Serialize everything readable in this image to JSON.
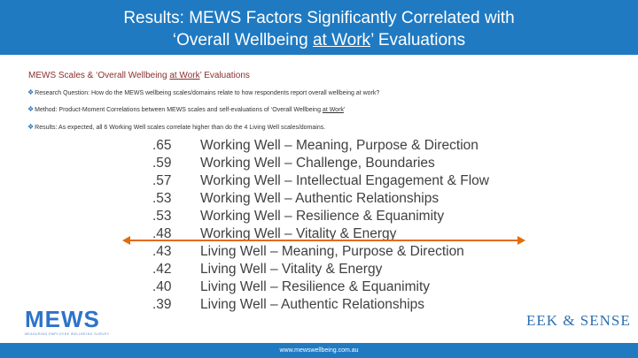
{
  "header": {
    "title_line1": "Results:  MEWS Factors Significantly Correlated with",
    "title_line2_prefix": "‘Overall Wellbeing ",
    "title_line2_underlined": "at Work",
    "title_line2_suffix": "’ Evaluations"
  },
  "subtitle": {
    "prefix": "MEWS Scales & ‘Overall Wellbeing ",
    "underlined": "at Work",
    "suffix": "’ Evaluations"
  },
  "bullets": [
    {
      "label": "Research Question:",
      "text": " How do the MEWS wellbeing scales/domains relate to how respondents report overall wellbeing at work?"
    },
    {
      "label": "Method:",
      "text": " Product-Moment Correlations between MEWS scales and self-evaluations of ‘Overall Wellbeing ",
      "underlined": "at Work",
      "suffix": "’"
    },
    {
      "label": "Results:",
      "text": " As expected, all 6 Working Well scales correlate higher than do the 4 Living Well scales/domains."
    }
  ],
  "correlations": [
    {
      "value": ".65",
      "label": "Working Well – Meaning, Purpose & Direction"
    },
    {
      "value": ".59",
      "label": "Working Well – Challenge, Boundaries"
    },
    {
      "value": ".57",
      "label": "Working Well – Intellectual Engagement & Flow"
    },
    {
      "value": ".53",
      "label": "Working Well – Authentic Relationships"
    },
    {
      "value": ".53",
      "label": "Working Well – Resilience & Equanimity"
    },
    {
      "value": ".48",
      "label": "Working Well – Vitality & Energy"
    },
    {
      "value": ".43",
      "label": "Living Well – Meaning, Purpose & Direction"
    },
    {
      "value": ".42",
      "label": "Living Well – Vitality & Energy"
    },
    {
      "value": ".40",
      "label": "Living Well – Resilience & Equanimity"
    },
    {
      "value": ".39",
      "label": "Living Well – Authentic Relationships"
    }
  ],
  "colors": {
    "header_bg": "#1f7ac2",
    "accent_divider": "#e36c0a",
    "subtitle_text": "#8a2e2e",
    "body_text": "#404040"
  },
  "logos": {
    "mews_brand": "MEWS",
    "mews_tagline": "MEASURING EMPLOYEE WELLBEING SURVEY",
    "eek_brand": "EEK & SENSE"
  },
  "footer": {
    "url": "www.mewswellbeing.com.au"
  }
}
